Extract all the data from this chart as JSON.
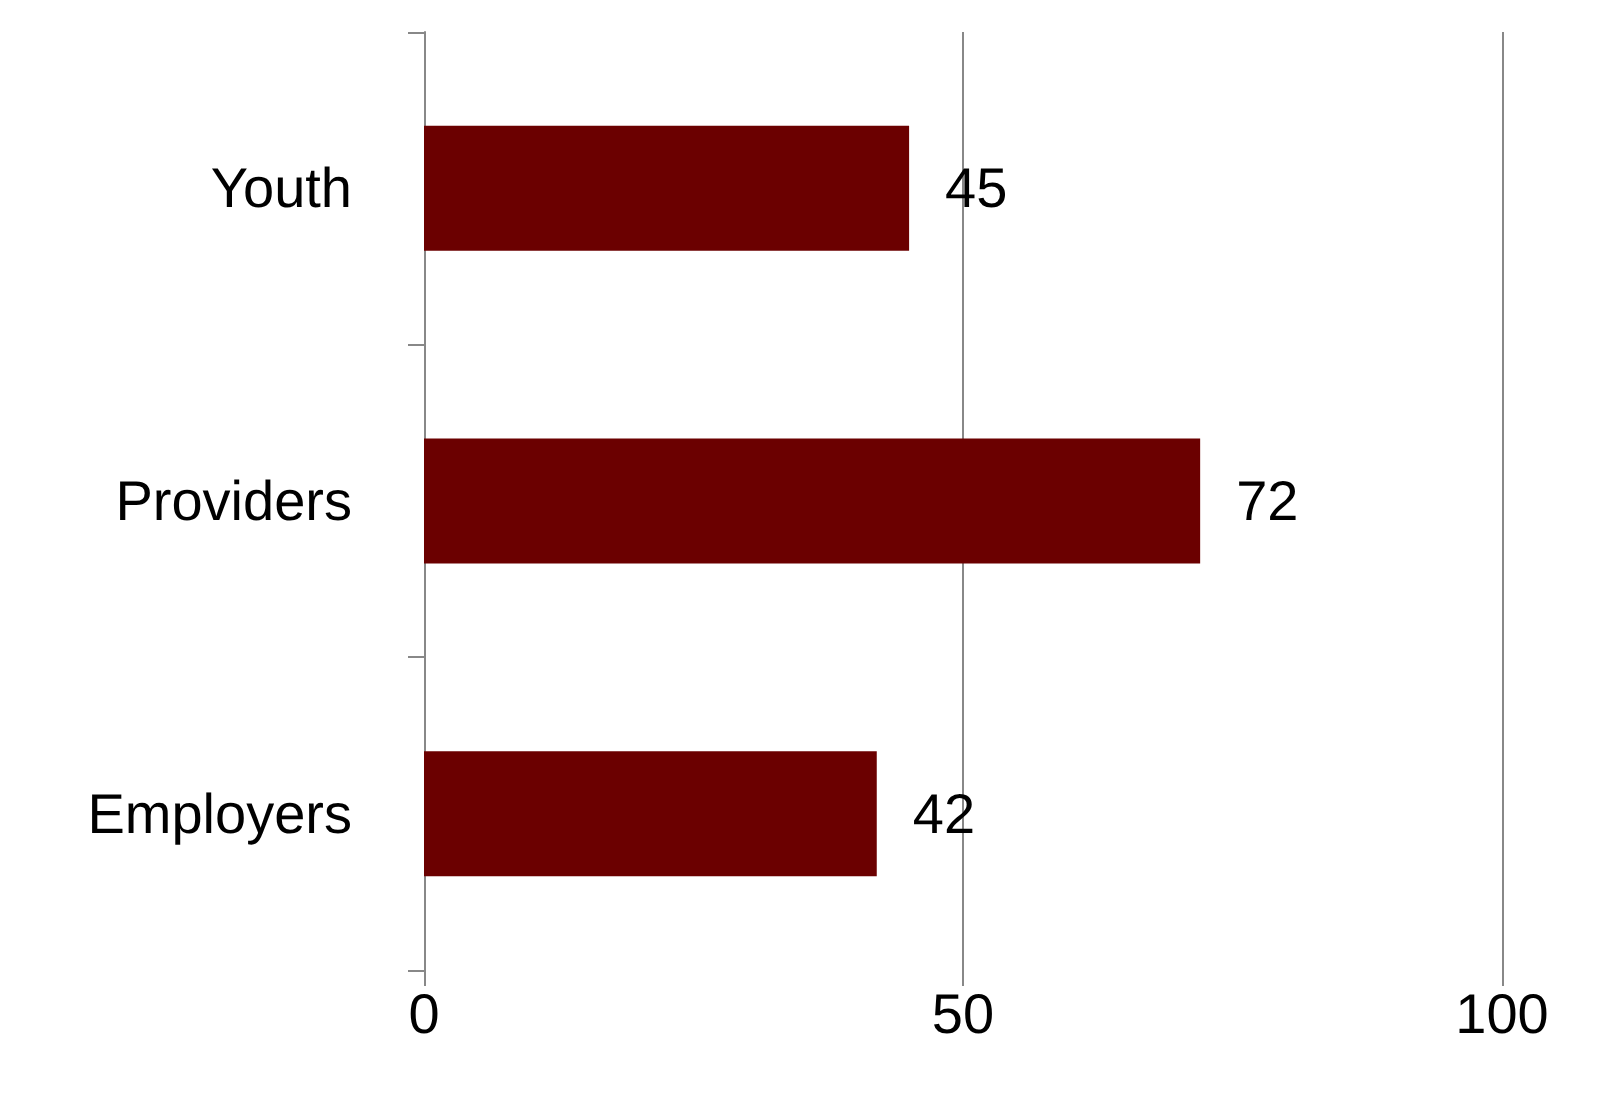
{
  "chart_data": {
    "type": "bar",
    "orientation": "horizontal",
    "categories": [
      "Youth",
      "Providers",
      "Employers"
    ],
    "values": [
      45,
      72,
      42
    ],
    "color": "#6b0000",
    "xlim": [
      0,
      100
    ],
    "xticks": [
      0,
      50,
      100
    ],
    "grid": "x",
    "data_labels": true
  }
}
